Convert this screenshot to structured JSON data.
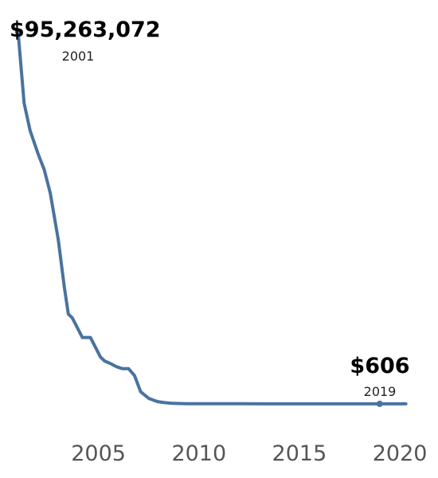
{
  "chart_data": {
    "type": "line",
    "title": "",
    "xlabel": "",
    "ylabel": "",
    "grid": false,
    "legend": "none",
    "xlim": [
      2000.1,
      2021.9
    ],
    "ylim": [
      -3700000,
      96500000
    ],
    "x_ticks": [
      {
        "value": 2005,
        "label": "2005"
      },
      {
        "value": 2010,
        "label": "2010"
      },
      {
        "value": 2015,
        "label": "2015"
      },
      {
        "value": 2020,
        "label": "2020"
      }
    ],
    "series": [
      {
        "color": "#4a72a0",
        "x": [
          2001.0,
          2001.3,
          2001.6,
          2002.0,
          2002.3,
          2002.6,
          2003.0,
          2003.3,
          2003.5,
          2003.7,
          2003.9,
          2004.2,
          2004.6,
          2004.9,
          2005.1,
          2005.3,
          2005.6,
          2005.9,
          2006.2,
          2006.5,
          2006.8,
          2007.1,
          2007.5,
          2007.8,
          2008.0,
          2008.3,
          2008.6,
          2009.0,
          2009.4,
          2010.0,
          2011.0,
          2012.0,
          2013.0,
          2013.5,
          2014.0,
          2014.5,
          2015.0,
          2016.0,
          2017.0,
          2017.5,
          2018.0,
          2019.0,
          2020.0,
          2020.3
        ],
        "y": [
          95263072,
          77000000,
          70000000,
          64000000,
          60000000,
          54000000,
          42000000,
          30000000,
          23000000,
          22000000,
          20000000,
          17000000,
          17000000,
          14000000,
          12000000,
          11000000,
          10300000,
          9500000,
          9000000,
          9000000,
          7200000,
          3100000,
          1400000,
          800000,
          500000,
          300000,
          150000,
          80000,
          40000,
          20000,
          8000,
          4000,
          2500,
          2000,
          1600,
          1300,
          1100,
          900,
          800,
          750,
          700,
          606,
          600,
          600
        ]
      }
    ],
    "markers": [
      {
        "x": 2001.0,
        "y": 95263072
      },
      {
        "x": 2019.0,
        "y": 606
      }
    ],
    "annotations": [
      {
        "value_label": "$95,263,072",
        "year_label": "2001",
        "x": 2001.0,
        "y": 95263072
      },
      {
        "value_label": "$606",
        "year_label": "2019",
        "x": 2019.0,
        "y": 606
      }
    ]
  }
}
